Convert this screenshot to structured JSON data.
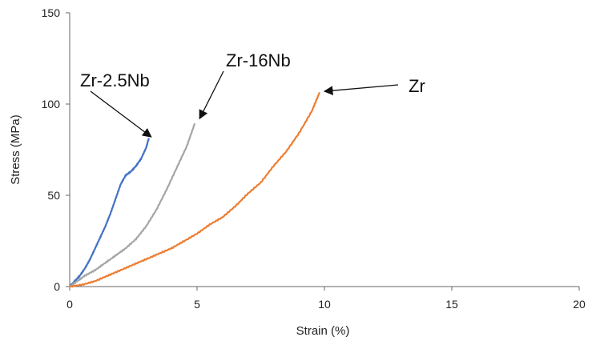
{
  "chart_data": {
    "type": "line",
    "title": "",
    "xlabel": "Strain (%)",
    "ylabel": "Stress (MPa)",
    "xlim": [
      0,
      20
    ],
    "ylim": [
      0,
      150
    ],
    "xticks": [
      "0",
      "5",
      "10",
      "15",
      "20"
    ],
    "yticks": [
      "0",
      "50",
      "100",
      "150"
    ],
    "grid": false,
    "legend": "none",
    "series": [
      {
        "color": "#4472C4",
        "x": [
          0,
          0.2,
          0.4,
          0.6,
          0.8,
          1.0,
          1.2,
          1.4,
          1.6,
          1.8,
          2.0,
          2.2,
          2.4,
          2.6,
          2.8,
          3.0,
          3.1
        ],
        "y": [
          0,
          3,
          6,
          10,
          15,
          21,
          27,
          33,
          40,
          48,
          56,
          61,
          63,
          66,
          70,
          76,
          81
        ]
      },
      {
        "color": "#A5A5A5",
        "x": [
          0,
          0.3,
          0.6,
          1.0,
          1.4,
          1.8,
          2.2,
          2.6,
          3.0,
          3.4,
          3.8,
          4.2,
          4.6,
          4.9
        ],
        "y": [
          0,
          3,
          6,
          9,
          13,
          17,
          21,
          26,
          33,
          42,
          53,
          65,
          77,
          89
        ]
      },
      {
        "color": "#ED7D31",
        "x": [
          0,
          0.5,
          1.0,
          1.5,
          2.0,
          2.5,
          3.0,
          3.5,
          4.0,
          4.5,
          5.0,
          5.5,
          6.0,
          6.5,
          7.0,
          7.5,
          8.0,
          8.5,
          9.0,
          9.5,
          9.8
        ],
        "y": [
          0,
          1,
          3,
          6,
          9,
          12,
          15,
          18,
          21,
          25,
          29,
          34,
          38,
          44,
          51,
          57,
          66,
          74,
          84,
          96,
          106
        ]
      }
    ],
    "annotations": [
      {
        "text": "Zr-2.5Nb",
        "target": [
          3.2,
          82
        ]
      },
      {
        "text": "Zr-16Nb",
        "target": [
          5.1,
          92
        ]
      },
      {
        "text": "Zr",
        "target": [
          10.0,
          107
        ]
      }
    ]
  }
}
